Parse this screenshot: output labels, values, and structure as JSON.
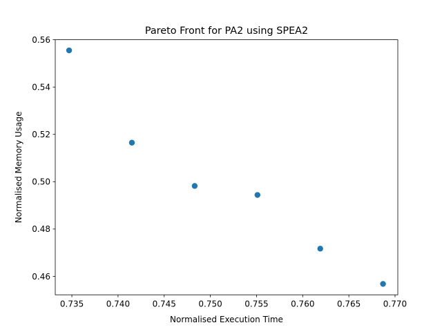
{
  "chart_data": {
    "type": "scatter",
    "title": "Pareto Front for PA2 using SPEA2",
    "xlabel": "Normalised Execution Time",
    "ylabel": "Normalised Memory Usage",
    "xlim": [
      0.7332,
      0.7703
    ],
    "ylim": [
      0.4522,
      0.56
    ],
    "x_ticks": [
      0.735,
      0.74,
      0.745,
      0.75,
      0.755,
      0.76,
      0.765,
      0.77
    ],
    "x_tick_labels": [
      "0.735",
      "0.740",
      "0.745",
      "0.750",
      "0.755",
      "0.760",
      "0.765",
      "0.770"
    ],
    "y_ticks": [
      0.46,
      0.48,
      0.5,
      0.52,
      0.54,
      0.56
    ],
    "y_tick_labels": [
      "0.46",
      "0.48",
      "0.50",
      "0.52",
      "0.54",
      "0.56"
    ],
    "grid": false,
    "legend": "none",
    "marker_color": "#1f77b4",
    "points": [
      {
        "x": 0.7347,
        "y": 0.5555
      },
      {
        "x": 0.7415,
        "y": 0.5165
      },
      {
        "x": 0.7483,
        "y": 0.4982
      },
      {
        "x": 0.7551,
        "y": 0.4944
      },
      {
        "x": 0.7619,
        "y": 0.4717
      },
      {
        "x": 0.7687,
        "y": 0.4568
      }
    ]
  }
}
